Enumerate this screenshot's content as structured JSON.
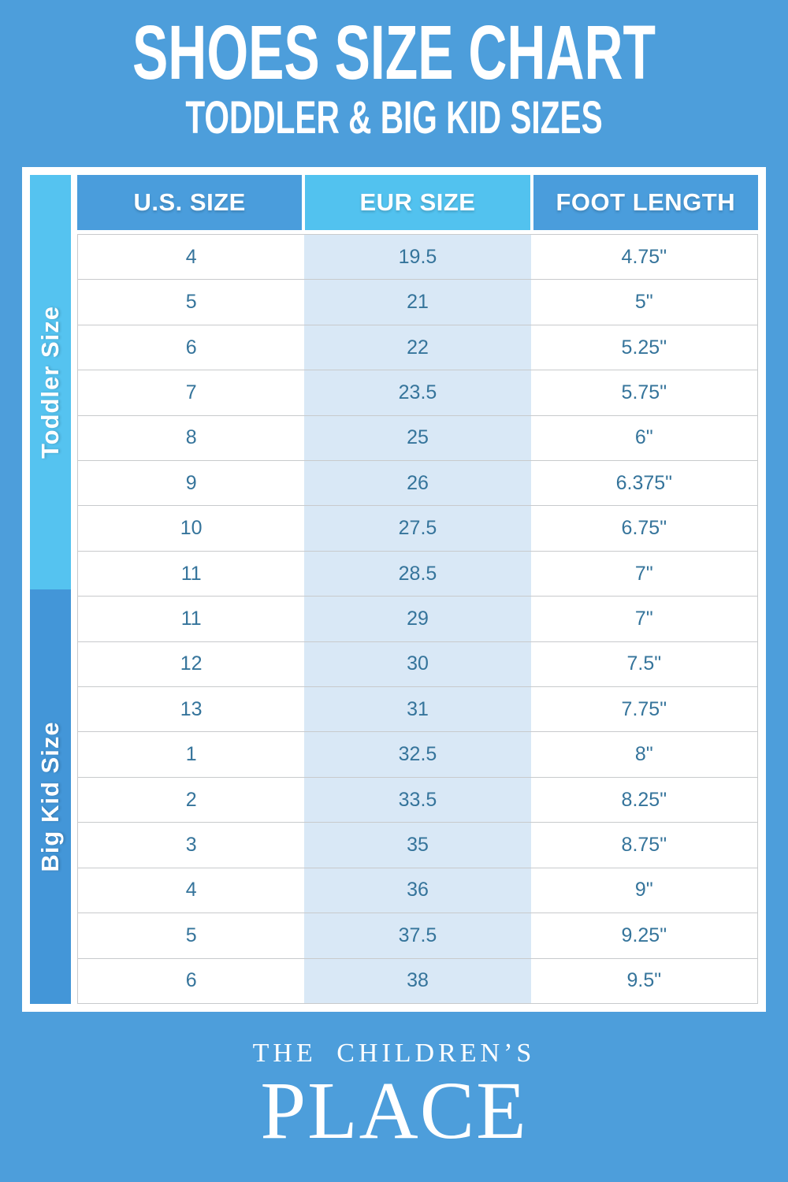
{
  "title": {
    "main": "SHOES SIZE CHART",
    "subtitle": "TODDLER & BIG KID SIZES"
  },
  "table": {
    "headers": [
      "U.S. SIZE",
      "EUR SIZE",
      "FOOT LENGTH"
    ],
    "sections": [
      {
        "label": "Toddler Size",
        "rows": [
          [
            "4",
            "19.5",
            "4.75\""
          ],
          [
            "5",
            "21",
            "5\""
          ],
          [
            "6",
            "22",
            "5.25\""
          ],
          [
            "7",
            "23.5",
            "5.75\""
          ],
          [
            "8",
            "25",
            "6\""
          ],
          [
            "9",
            "26",
            "6.375\""
          ],
          [
            "10",
            "27.5",
            "6.75\""
          ],
          [
            "11",
            "28.5",
            "7\""
          ]
        ]
      },
      {
        "label": "Big Kid Size",
        "rows": [
          [
            "11",
            "29",
            "7\""
          ],
          [
            "12",
            "30",
            "7.5\""
          ],
          [
            "13",
            "31",
            "7.75\""
          ],
          [
            "1",
            "32.5",
            "8\""
          ],
          [
            "2",
            "33.5",
            "8.25\""
          ],
          [
            "3",
            "35",
            "8.75\""
          ],
          [
            "4",
            "36",
            "9\""
          ],
          [
            "5",
            "37.5",
            "9.25\""
          ],
          [
            "6",
            "38",
            "9.5\""
          ]
        ]
      }
    ]
  },
  "footer": {
    "brand_top": "THE CHILDREN’S",
    "brand_bottom": "PLACE"
  },
  "colors": {
    "bg": "#4D9EDB",
    "header_blue": "#4A9DDC",
    "header_cyan": "#52C2EF",
    "strip_toddler": "#55C3F0",
    "strip_bigkid": "#4396D8",
    "eur_tint": "#D9E8F6",
    "divider": "#C8CACC",
    "cell_text": "#35749B"
  }
}
